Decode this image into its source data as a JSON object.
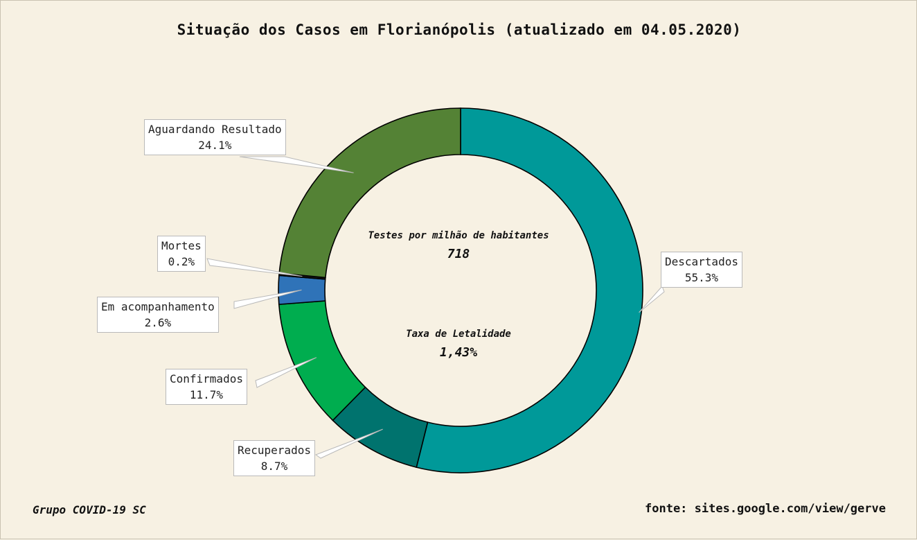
{
  "chart_data": {
    "type": "pie",
    "donut": true,
    "title": "Situação dos Casos em Florianópolis (atualizado em 04.05.2020)",
    "slices": [
      {
        "label": "Descartados",
        "value": 55.3,
        "value_label": "55.3%",
        "color": "#009999"
      },
      {
        "label": "Recuperados",
        "value": 8.7,
        "value_label": "8.7%",
        "color": "#00736e"
      },
      {
        "label": "Confirmados",
        "value": 11.7,
        "value_label": "11.7%",
        "color": "#00ad4f"
      },
      {
        "label": "Em acompanhamento",
        "value": 2.6,
        "value_label": "2.6%",
        "color": "#2f73b8"
      },
      {
        "label": "Mortes",
        "value": 0.2,
        "value_label": "0.2%",
        "color": "#1a1a1a"
      },
      {
        "label": "Aguardando Resultado",
        "value": 24.1,
        "value_label": "24.1%",
        "color": "#548235"
      }
    ],
    "start_angle": "top",
    "direction": "clockwise",
    "center_text": {
      "tests_label": "Testes por milhão de habitantes",
      "tests_value": "718",
      "lethality_label": "Taxa de Letalidade",
      "lethality_value": "1,43%"
    }
  },
  "footer": {
    "left": "Grupo COVID-19 SC",
    "right": "fonte: sites.google.com/view/gerve"
  }
}
